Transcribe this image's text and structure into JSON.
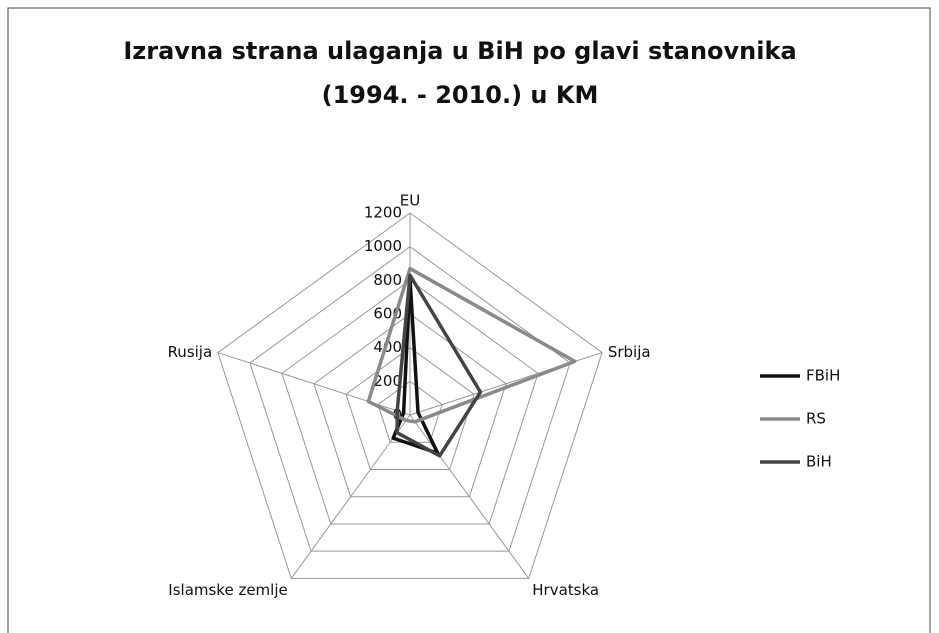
{
  "chart_data": {
    "type": "radar",
    "title": [
      "Izravna strana ulaganja u BiH po glavi stanovnika",
      "(1994. - 2010.) u KM"
    ],
    "categories": [
      "EU",
      "Srbija",
      "Hrvatska",
      "Islamske zemlje",
      "Rusija"
    ],
    "ylim": [
      0,
      1200
    ],
    "yticks": [
      0,
      200,
      400,
      600,
      800,
      1000,
      1200
    ],
    "grid": true,
    "legend": "right",
    "series": [
      {
        "name": "FBiH",
        "color": "#111111",
        "values": [
          810,
          50,
          280,
          170,
          40
        ]
      },
      {
        "name": "RS",
        "color": "#8a8a8a",
        "values": [
          870,
          1030,
          50,
          40,
          260
        ]
      },
      {
        "name": "BiH",
        "color": "#444444",
        "values": [
          830,
          440,
          300,
          130,
          80
        ]
      }
    ]
  }
}
